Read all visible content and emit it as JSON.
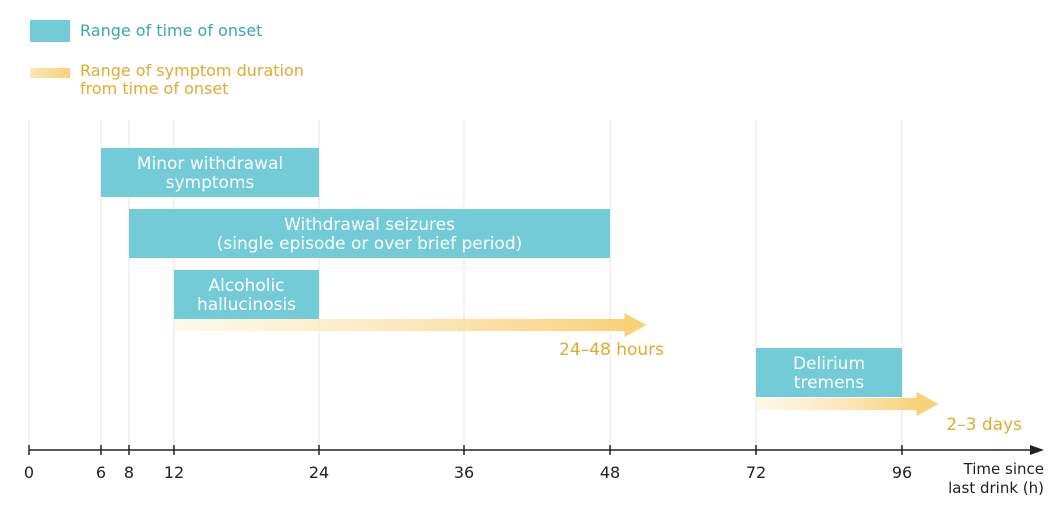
{
  "legend": {
    "onset_label": "Range of time of onset",
    "duration_line1": "Range of symptom duration",
    "duration_line2": "from time of onset"
  },
  "colors": {
    "onset_bar": "#72cbd6",
    "duration_arrow": "#f9d179",
    "duration_text": "#e4a92e",
    "onset_text": "#3aa6b3",
    "axis": "#222222",
    "gridline": "#e4e4e4"
  },
  "chart_data": {
    "type": "gantt",
    "xlabel": [
      "Time since",
      "last drink (h)"
    ],
    "x_ticks": [
      0,
      6,
      8,
      12,
      24,
      36,
      48,
      72,
      96
    ],
    "x_scale": "piecewise-linear",
    "grid": true,
    "onset_ranges": [
      {
        "label": [
          "Minor withdrawal",
          "symptoms"
        ],
        "start": 6,
        "end": 24
      },
      {
        "label": [
          "Withdrawal seizures",
          "(single episode or over brief period)"
        ],
        "start": 8,
        "end": 48
      },
      {
        "label": [
          "Alcoholic",
          "hallucinosis"
        ],
        "start": 12,
        "end": 24
      },
      {
        "label": [
          "Delirium",
          "tremens"
        ],
        "start": 72,
        "end": 96
      }
    ],
    "duration_arrows": [
      {
        "applies_to": "Alcoholic hallucinosis",
        "start": 12,
        "label": "24–48 hours"
      },
      {
        "applies_to": "Delirium tremens",
        "start": 72,
        "label": "2–3 days"
      }
    ]
  }
}
